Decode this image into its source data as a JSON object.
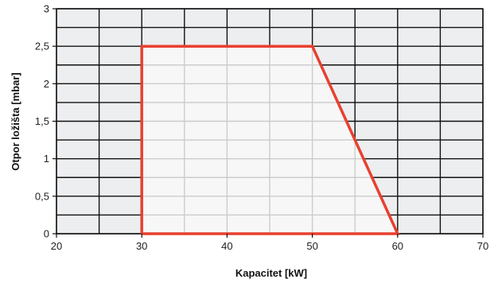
{
  "chart_data": {
    "type": "area",
    "xlabel": "Kapacitet [kW]",
    "ylabel": "Otpor ložišta [mbar]",
    "xlim": [
      20,
      70
    ],
    "ylim": [
      0,
      3
    ],
    "x_ticks": [
      20,
      30,
      40,
      50,
      60,
      70
    ],
    "x_tick_labels": [
      "20",
      "30",
      "40",
      "50",
      "60",
      "70"
    ],
    "y_ticks": [
      0,
      0.5,
      1,
      1.5,
      2,
      2.5,
      3
    ],
    "y_tick_labels": [
      "0",
      "0,5",
      "1",
      "1,5",
      "2",
      "2,5",
      "3"
    ],
    "grid": true,
    "legend": "none",
    "series": [
      {
        "x": [
          30,
          30,
          50,
          60,
          30
        ],
        "y": [
          0,
          2.5,
          2.5,
          0,
          0
        ]
      }
    ],
    "colors": {
      "outline": "#e8402f",
      "region_fill": "#f7f7f7",
      "cell_fill": "#eceef0",
      "major_grid": "#111111",
      "minor_grid": "#cccccc"
    }
  }
}
